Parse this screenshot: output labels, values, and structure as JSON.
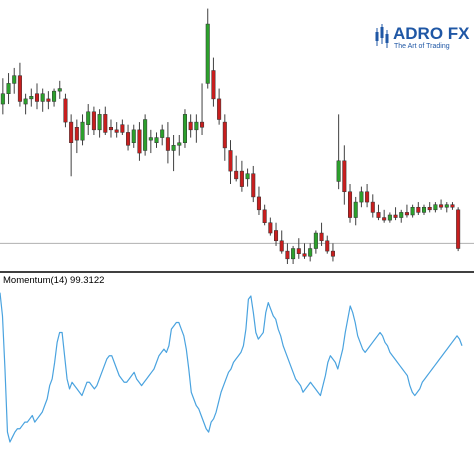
{
  "brand": {
    "name_prefix": "ADRO",
    "name_suffix": "FX",
    "tagline": "The Art of Trading",
    "color": "#1f57a5"
  },
  "chart_data": [
    {
      "type": "candlestick",
      "title": "",
      "xlabel": "",
      "ylabel": "",
      "grid": false,
      "colors": {
        "up": "#2ca02c",
        "down": "#c81e1e",
        "wick": "#404040",
        "baseline": "#b0b0b0"
      },
      "price_levels": {
        "min": 0,
        "max": 100
      },
      "baseline_level": 8,
      "candles": [
        {
          "o": 62,
          "h": 72,
          "l": 58,
          "c": 66
        },
        {
          "o": 66,
          "h": 74,
          "l": 62,
          "c": 70
        },
        {
          "o": 70,
          "h": 76,
          "l": 66,
          "c": 73
        },
        {
          "o": 73,
          "h": 78,
          "l": 61,
          "c": 63
        },
        {
          "o": 62,
          "h": 66,
          "l": 58,
          "c": 64
        },
        {
          "o": 64,
          "h": 68,
          "l": 61,
          "c": 65
        },
        {
          "o": 66,
          "h": 70,
          "l": 60,
          "c": 63
        },
        {
          "o": 63,
          "h": 68,
          "l": 59,
          "c": 66
        },
        {
          "o": 64,
          "h": 67,
          "l": 60,
          "c": 63
        },
        {
          "o": 63,
          "h": 68,
          "l": 61,
          "c": 67
        },
        {
          "o": 67,
          "h": 71,
          "l": 64,
          "c": 68
        },
        {
          "o": 64,
          "h": 66,
          "l": 53,
          "c": 55
        },
        {
          "o": 55,
          "h": 58,
          "l": 34,
          "c": 47
        },
        {
          "o": 53,
          "h": 56,
          "l": 43,
          "c": 48
        },
        {
          "o": 48,
          "h": 58,
          "l": 46,
          "c": 55
        },
        {
          "o": 54,
          "h": 62,
          "l": 50,
          "c": 59
        },
        {
          "o": 59,
          "h": 61,
          "l": 50,
          "c": 52
        },
        {
          "o": 52,
          "h": 60,
          "l": 49,
          "c": 58
        },
        {
          "o": 58,
          "h": 61,
          "l": 50,
          "c": 51
        },
        {
          "o": 53,
          "h": 56,
          "l": 49,
          "c": 52
        },
        {
          "o": 52,
          "h": 55,
          "l": 49,
          "c": 51
        },
        {
          "o": 54,
          "h": 56,
          "l": 50,
          "c": 51
        },
        {
          "o": 51,
          "h": 54,
          "l": 44,
          "c": 46
        },
        {
          "o": 47,
          "h": 54,
          "l": 45,
          "c": 52
        },
        {
          "o": 52,
          "h": 55,
          "l": 40,
          "c": 43
        },
        {
          "o": 44,
          "h": 58,
          "l": 42,
          "c": 56
        },
        {
          "o": 48,
          "h": 52,
          "l": 43,
          "c": 49
        },
        {
          "o": 47,
          "h": 51,
          "l": 45,
          "c": 49
        },
        {
          "o": 49,
          "h": 54,
          "l": 46,
          "c": 52
        },
        {
          "o": 49,
          "h": 55,
          "l": 39,
          "c": 44
        },
        {
          "o": 44,
          "h": 50,
          "l": 36,
          "c": 46
        },
        {
          "o": 46,
          "h": 50,
          "l": 42,
          "c": 47
        },
        {
          "o": 47,
          "h": 60,
          "l": 45,
          "c": 58
        },
        {
          "o": 55,
          "h": 58,
          "l": 49,
          "c": 52
        },
        {
          "o": 52,
          "h": 58,
          "l": 47,
          "c": 55
        },
        {
          "o": 55,
          "h": 70,
          "l": 50,
          "c": 53
        },
        {
          "o": 70,
          "h": 99,
          "l": 68,
          "c": 93
        },
        {
          "o": 75,
          "h": 80,
          "l": 61,
          "c": 64
        },
        {
          "o": 64,
          "h": 68,
          "l": 54,
          "c": 56
        },
        {
          "o": 55,
          "h": 58,
          "l": 40,
          "c": 45
        },
        {
          "o": 44,
          "h": 48,
          "l": 31,
          "c": 36
        },
        {
          "o": 36,
          "h": 42,
          "l": 32,
          "c": 33
        },
        {
          "o": 36,
          "h": 40,
          "l": 28,
          "c": 30
        },
        {
          "o": 33,
          "h": 37,
          "l": 30,
          "c": 35
        },
        {
          "o": 35,
          "h": 38,
          "l": 24,
          "c": 26
        },
        {
          "o": 26,
          "h": 30,
          "l": 19,
          "c": 21
        },
        {
          "o": 21,
          "h": 23,
          "l": 15,
          "c": 16
        },
        {
          "o": 16,
          "h": 18,
          "l": 11,
          "c": 12
        },
        {
          "o": 13,
          "h": 16,
          "l": 7,
          "c": 9
        },
        {
          "o": 9,
          "h": 13,
          "l": 4,
          "c": 5
        },
        {
          "o": 5,
          "h": 8,
          "l": 0,
          "c": 2
        },
        {
          "o": 2,
          "h": 7,
          "l": 0,
          "c": 6
        },
        {
          "o": 6,
          "h": 10,
          "l": 2,
          "c": 4
        },
        {
          "o": 4,
          "h": 8,
          "l": 2,
          "c": 3
        },
        {
          "o": 3,
          "h": 8,
          "l": 1,
          "c": 6
        },
        {
          "o": 6,
          "h": 13,
          "l": 4,
          "c": 12
        },
        {
          "o": 12,
          "h": 16,
          "l": 7,
          "c": 9
        },
        {
          "o": 9,
          "h": 11,
          "l": 4,
          "c": 5
        },
        {
          "o": 5,
          "h": 8,
          "l": 1,
          "c": 3
        },
        {
          "o": 32,
          "h": 58,
          "l": 29,
          "c": 40
        },
        {
          "o": 40,
          "h": 46,
          "l": 23,
          "c": 28
        },
        {
          "o": 28,
          "h": 31,
          "l": 16,
          "c": 18
        },
        {
          "o": 18,
          "h": 26,
          "l": 15,
          "c": 24
        },
        {
          "o": 24,
          "h": 30,
          "l": 22,
          "c": 28
        },
        {
          "o": 28,
          "h": 31,
          "l": 22,
          "c": 24
        },
        {
          "o": 24,
          "h": 27,
          "l": 18,
          "c": 20
        },
        {
          "o": 20,
          "h": 23,
          "l": 17,
          "c": 18
        },
        {
          "o": 18,
          "h": 21,
          "l": 16,
          "c": 17
        },
        {
          "o": 17,
          "h": 20,
          "l": 16,
          "c": 19
        },
        {
          "o": 19,
          "h": 22,
          "l": 17,
          "c": 18
        },
        {
          "o": 18,
          "h": 21,
          "l": 16,
          "c": 20
        },
        {
          "o": 20,
          "h": 23,
          "l": 18,
          "c": 19
        },
        {
          "o": 19,
          "h": 23,
          "l": 18,
          "c": 22
        },
        {
          "o": 22,
          "h": 24,
          "l": 19,
          "c": 20
        },
        {
          "o": 20,
          "h": 23,
          "l": 19,
          "c": 22
        },
        {
          "o": 22,
          "h": 24,
          "l": 20,
          "c": 21
        },
        {
          "o": 21,
          "h": 24,
          "l": 20,
          "c": 23
        },
        {
          "o": 23,
          "h": 25,
          "l": 21,
          "c": 22
        },
        {
          "o": 22,
          "h": 24,
          "l": 20,
          "c": 23
        },
        {
          "o": 23,
          "h": 24,
          "l": 21,
          "c": 22
        },
        {
          "o": 21,
          "h": 22,
          "l": 5,
          "c": 6
        }
      ]
    },
    {
      "type": "line",
      "title": "Momentum(14) 99.3122",
      "label_name": "Momentum(14)",
      "label_value": "99.3122",
      "xlabel": "",
      "ylabel": "",
      "grid": false,
      "color": "#4aa3df",
      "ylim": [
        0,
        100
      ],
      "values": [
        96,
        82,
        50,
        12,
        6,
        9,
        12,
        14,
        14,
        16,
        18,
        18,
        20,
        22,
        18,
        20,
        22,
        24,
        28,
        32,
        40,
        44,
        54,
        66,
        72,
        72,
        58,
        44,
        38,
        42,
        40,
        38,
        36,
        34,
        38,
        42,
        42,
        40,
        38,
        40,
        44,
        48,
        52,
        56,
        58,
        58,
        54,
        50,
        46,
        44,
        42,
        42,
        44,
        46,
        48,
        44,
        42,
        40,
        42,
        44,
        46,
        48,
        50,
        54,
        58,
        60,
        62,
        60,
        64,
        74,
        76,
        78,
        78,
        74,
        70,
        62,
        50,
        36,
        32,
        28,
        26,
        22,
        18,
        14,
        12,
        18,
        20,
        24,
        30,
        36,
        40,
        44,
        48,
        50,
        54,
        56,
        58,
        60,
        64,
        74,
        92,
        94,
        84,
        72,
        68,
        70,
        72,
        84,
        90,
        86,
        82,
        80,
        74,
        70,
        64,
        60,
        56,
        52,
        48,
        44,
        42,
        40,
        36,
        38,
        40,
        42,
        40,
        38,
        36,
        34,
        40,
        46,
        54,
        58,
        56,
        54,
        50,
        56,
        62,
        72,
        80,
        88,
        84,
        78,
        70,
        66,
        62,
        60,
        62,
        64,
        66,
        68,
        70,
        72,
        70,
        66,
        64,
        60,
        58,
        56,
        54,
        52,
        50,
        48,
        46,
        40,
        36,
        34,
        36,
        38,
        42,
        44,
        46,
        48,
        50,
        52,
        54,
        56,
        58,
        60,
        62,
        64,
        66,
        68,
        70,
        68,
        64
      ]
    }
  ]
}
